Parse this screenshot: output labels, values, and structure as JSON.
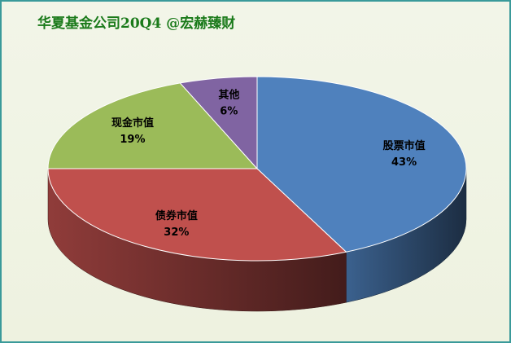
{
  "chart_data": {
    "type": "pie",
    "title": "华夏基金公司20Q4 @宏赫臻财",
    "categories": [
      "股票市值",
      "债券市值",
      "现金市值",
      "其他"
    ],
    "values": [
      43,
      32,
      19,
      6
    ],
    "value_labels": [
      "43%",
      "32%",
      "19%",
      "6%"
    ],
    "colors": [
      "#4f81bd",
      "#c0504d",
      "#9bbb59",
      "#8064a2"
    ]
  }
}
